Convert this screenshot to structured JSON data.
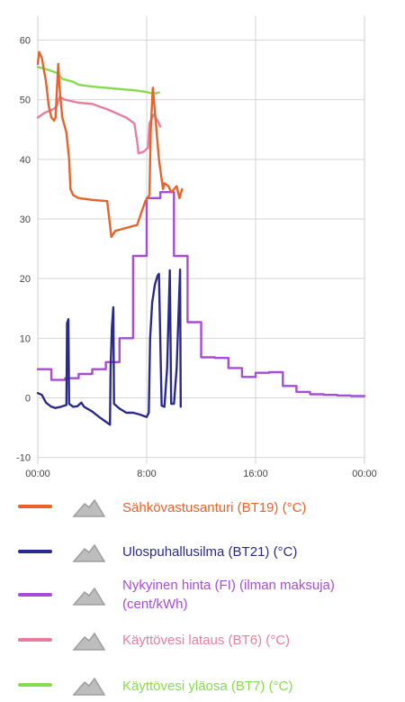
{
  "chart_data": {
    "type": "line",
    "ylim": [
      -10,
      62
    ],
    "yticks": [
      60,
      50,
      40,
      30,
      20,
      10,
      0,
      -10
    ],
    "xlim": [
      0,
      24
    ],
    "xticks": [
      {
        "h": 0,
        "label": "00:00"
      },
      {
        "h": 8,
        "label": "8:00"
      },
      {
        "h": 16,
        "label": "16:00"
      },
      {
        "h": 24,
        "label": "00:00"
      }
    ],
    "grid": true,
    "series": [
      {
        "key": "bt19",
        "name": "Sähkövastusanturi (BT19) (°C)",
        "color": "#E8622A",
        "step": false,
        "points": [
          [
            0,
            56
          ],
          [
            0.1,
            58
          ],
          [
            0.3,
            57
          ],
          [
            0.6,
            53
          ],
          [
            0.8,
            49
          ],
          [
            1.0,
            47
          ],
          [
            1.2,
            46.5
          ],
          [
            1.3,
            47
          ],
          [
            1.5,
            56
          ],
          [
            1.6,
            52
          ],
          [
            1.8,
            47
          ],
          [
            2.1,
            44.5
          ],
          [
            2.3,
            40
          ],
          [
            2.4,
            35
          ],
          [
            2.6,
            34
          ],
          [
            3,
            33.5
          ],
          [
            4,
            33.2
          ],
          [
            5.1,
            33
          ],
          [
            5.3,
            29
          ],
          [
            5.4,
            27
          ],
          [
            5.7,
            28
          ],
          [
            6.5,
            28.5
          ],
          [
            7.3,
            29
          ],
          [
            7.6,
            31
          ],
          [
            7.9,
            33
          ],
          [
            8.2,
            34
          ],
          [
            8.3,
            45
          ],
          [
            8.45,
            52
          ],
          [
            8.6,
            48
          ],
          [
            8.9,
            40
          ],
          [
            9.2,
            35
          ],
          [
            9.3,
            36
          ],
          [
            9.6,
            35.5
          ],
          [
            9.8,
            34.5
          ],
          [
            10,
            35
          ],
          [
            10.2,
            35.5
          ],
          [
            10.4,
            33.5
          ],
          [
            10.6,
            35
          ]
        ]
      },
      {
        "key": "bt21",
        "name": "Ulospuhallusilma (BT21) (°C)",
        "color": "#2A2A8C",
        "step": false,
        "points": [
          [
            0,
            0.8
          ],
          [
            0.3,
            0.5
          ],
          [
            0.6,
            -0.8
          ],
          [
            1,
            -1.5
          ],
          [
            1.3,
            -1.7
          ],
          [
            1.7,
            -1.5
          ],
          [
            2.1,
            -1.2
          ],
          [
            2.15,
            12.5
          ],
          [
            2.25,
            13.2
          ],
          [
            2.3,
            -1
          ],
          [
            2.6,
            -1.5
          ],
          [
            2.9,
            -1.4
          ],
          [
            3.2,
            -0.8
          ],
          [
            3.4,
            -1.5
          ],
          [
            4,
            -2.3
          ],
          [
            4.5,
            -3.2
          ],
          [
            5,
            -4
          ],
          [
            5.3,
            -4.5
          ],
          [
            5.35,
            5
          ],
          [
            5.45,
            12
          ],
          [
            5.55,
            15.2
          ],
          [
            5.6,
            -1
          ],
          [
            6,
            -1.8
          ],
          [
            6.5,
            -2.5
          ],
          [
            7,
            -2.5
          ],
          [
            7.5,
            -2.8
          ],
          [
            8,
            -3.2
          ],
          [
            8.15,
            -2.5
          ],
          [
            8.25,
            10
          ],
          [
            8.4,
            16
          ],
          [
            8.6,
            19
          ],
          [
            8.8,
            20.5
          ],
          [
            8.9,
            20.8
          ],
          [
            9.1,
            -1.3
          ],
          [
            9.3,
            -1.5
          ],
          [
            9.5,
            5
          ],
          [
            9.7,
            21.4
          ],
          [
            9.8,
            -1
          ],
          [
            10,
            -1
          ],
          [
            10.2,
            5
          ],
          [
            10.45,
            21.5
          ],
          [
            10.5,
            -1.5
          ]
        ]
      },
      {
        "key": "price",
        "name": "Nykyinen hinta (FI) (ilman maksuja) (cent/kWh)",
        "color": "#A64CD6",
        "step": true,
        "points": [
          [
            0,
            4.8
          ],
          [
            1,
            4.8
          ],
          [
            1,
            3
          ],
          [
            2,
            3
          ],
          [
            2,
            3.3
          ],
          [
            3,
            3.3
          ],
          [
            3,
            4
          ],
          [
            4,
            4
          ],
          [
            4,
            4.8
          ],
          [
            5,
            4.8
          ],
          [
            5,
            6
          ],
          [
            6,
            6
          ],
          [
            6,
            10
          ],
          [
            7,
            10
          ],
          [
            7,
            23.8
          ],
          [
            8,
            23.8
          ],
          [
            8,
            33.5
          ],
          [
            9,
            33.5
          ],
          [
            9,
            34.5
          ],
          [
            10,
            34.5
          ],
          [
            10,
            23.8
          ],
          [
            11,
            23.8
          ],
          [
            11,
            12.7
          ],
          [
            12,
            12.7
          ],
          [
            12,
            6.8
          ],
          [
            13,
            6.8
          ],
          [
            13,
            6.7
          ],
          [
            14,
            6.7
          ],
          [
            14,
            5
          ],
          [
            15,
            5
          ],
          [
            15,
            3.5
          ],
          [
            16,
            3.5
          ],
          [
            16,
            4.2
          ],
          [
            17,
            4.2
          ],
          [
            17,
            4.3
          ],
          [
            18,
            4.3
          ],
          [
            18,
            2
          ],
          [
            19,
            2
          ],
          [
            19,
            1
          ],
          [
            20,
            1
          ],
          [
            20,
            0.6
          ],
          [
            21,
            0.6
          ],
          [
            21,
            0.5
          ],
          [
            22,
            0.5
          ],
          [
            22,
            0.4
          ],
          [
            23,
            0.4
          ],
          [
            23,
            0.3
          ],
          [
            24,
            0.3
          ]
        ]
      },
      {
        "key": "bt6",
        "name": "Käyttövesi lataus (BT6) (°C)",
        "color": "#E77E9E",
        "step": false,
        "points": [
          [
            0,
            47
          ],
          [
            0.5,
            47.8
          ],
          [
            1.2,
            48.5
          ],
          [
            1.4,
            49
          ],
          [
            1.6,
            50.5
          ],
          [
            2,
            50
          ],
          [
            3,
            49.5
          ],
          [
            4,
            49.3
          ],
          [
            4.6,
            48.8
          ],
          [
            5,
            48.5
          ],
          [
            5.5,
            48
          ],
          [
            6,
            47.5
          ],
          [
            6.5,
            47
          ],
          [
            7.1,
            46
          ],
          [
            7.3,
            43
          ],
          [
            7.4,
            41
          ],
          [
            7.8,
            41.3
          ],
          [
            8.1,
            42
          ],
          [
            8.2,
            46
          ],
          [
            8.5,
            47.5
          ],
          [
            8.8,
            46.5
          ],
          [
            9,
            45.5
          ]
        ]
      },
      {
        "key": "bt7",
        "name": "Käyttövesi yläosa (BT7) (°C)",
        "color": "#86DC4E",
        "step": false,
        "points": [
          [
            0,
            55.5
          ],
          [
            0.8,
            55
          ],
          [
            1.4,
            54.5
          ],
          [
            1.8,
            53.5
          ],
          [
            2.6,
            53
          ],
          [
            3,
            52.5
          ],
          [
            4,
            52.2
          ],
          [
            5,
            52
          ],
          [
            6,
            51.8
          ],
          [
            7,
            51.6
          ],
          [
            8,
            51.3
          ],
          [
            8.5,
            51
          ],
          [
            8.9,
            51.2
          ]
        ]
      }
    ]
  }
}
